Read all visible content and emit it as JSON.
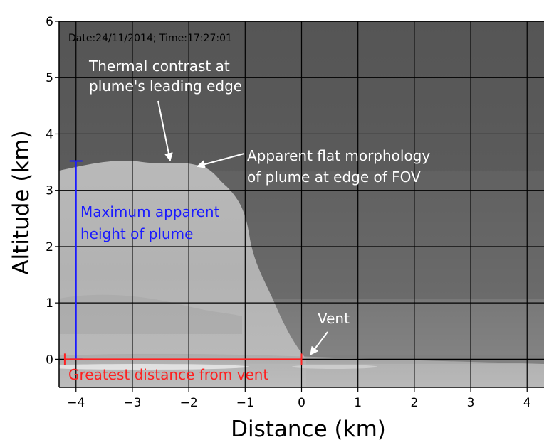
{
  "figure": {
    "timestamp": "Date:24/11/2014; Time:17:27:01",
    "xlabel": "Distance (km)",
    "ylabel": "Altitude (km)",
    "x_ticks": [
      -4,
      -3,
      -2,
      -1,
      0,
      1,
      2,
      3,
      4
    ],
    "x_tick_labels": [
      "−4",
      "−3",
      "−2",
      "−1",
      "0",
      "1",
      "2",
      "3",
      "4"
    ],
    "y_ticks": [
      0,
      1,
      2,
      3,
      4,
      5,
      6
    ],
    "y_tick_labels": [
      "0",
      "1",
      "2",
      "3",
      "4",
      "5",
      "6"
    ],
    "xlim": [
      -4.3,
      4.3
    ],
    "ylim": [
      -0.5,
      6
    ],
    "grid": true,
    "annotations": {
      "thermal_contrast": [
        "Thermal contrast at",
        "plume's leading edge"
      ],
      "flat_morphology": [
        "Apparent flat morphology",
        "of plume at edge of FOV"
      ],
      "max_height": [
        "Maximum apparent",
        "height of plume"
      ],
      "vent": "Vent",
      "greatest_distance": "Greatest distance from vent"
    },
    "markers": {
      "max_height_km": 3.52,
      "max_height_x_km": -4.0,
      "distance_range_km": [
        -4.2,
        0
      ],
      "vent_km": [
        0,
        0
      ]
    },
    "colors": {
      "height_marker": "#1a1aff",
      "distance_marker": "#ff2020",
      "annotation_text": "#ffffff",
      "sky": "#5a5a5a",
      "plume": "#bdbdbd"
    }
  }
}
